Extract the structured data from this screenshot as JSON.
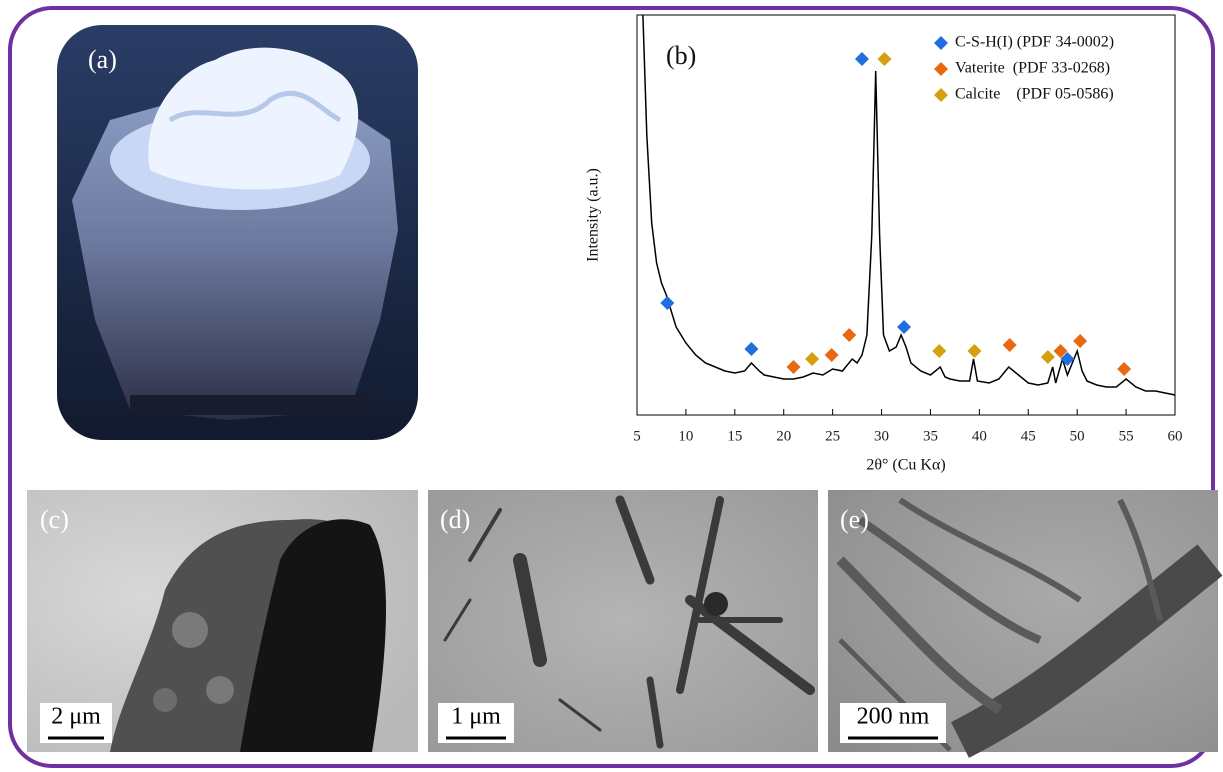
{
  "panels": {
    "a": {
      "label": "(a)"
    },
    "c": {
      "label": "(c)",
      "scale_bar": "2 μm"
    },
    "d": {
      "label": "(d)",
      "scale_bar": "1 μm"
    },
    "e": {
      "label": "(e)",
      "scale_bar": "200 nm"
    }
  },
  "chart_data": {
    "type": "line",
    "panel_label": "(b)",
    "x_label": "2θ° (Cu Kα)",
    "y_label": "Intensity (a.u.)",
    "xlim": [
      5,
      60
    ],
    "ylim": [
      0,
      100
    ],
    "xticks": [
      5,
      10,
      15,
      20,
      25,
      30,
      35,
      40,
      45,
      50,
      55,
      60
    ],
    "series": [
      {
        "type": "line",
        "color": "#000000",
        "x": [
          5.6,
          6,
          6.5,
          7,
          7.5,
          8,
          8.5,
          9,
          10,
          11,
          12,
          13,
          14,
          15,
          16,
          16.7,
          17.5,
          18,
          19,
          20,
          21,
          22,
          23,
          24,
          25,
          26,
          27,
          27.5,
          28,
          28.5,
          29,
          29.4,
          29.8,
          30.2,
          30.8,
          31.5,
          32,
          32.5,
          33,
          34,
          35,
          36,
          36.5,
          37,
          38,
          39,
          39.4,
          39.8,
          41,
          42,
          43,
          43.5,
          44,
          45,
          46,
          47,
          47.5,
          47.8,
          48.5,
          49,
          50,
          50.5,
          51,
          52,
          53,
          54,
          55,
          56,
          57,
          58,
          59,
          60
        ],
        "values": [
          100,
          70,
          48,
          38,
          33,
          30,
          26,
          22,
          18,
          15,
          13,
          12,
          11,
          10.5,
          11,
          13,
          11,
          10,
          9.5,
          9,
          9,
          9.5,
          10.5,
          10,
          11.5,
          11,
          14,
          13,
          15,
          20,
          45,
          86,
          45,
          20,
          16,
          17,
          20,
          17,
          13,
          11,
          10,
          12,
          9.5,
          9,
          8.5,
          8.5,
          14,
          8.5,
          8,
          9,
          12,
          11,
          10,
          8,
          7.5,
          8,
          12,
          8,
          14,
          10,
          16,
          11,
          8.5,
          7.5,
          7,
          7,
          9,
          7,
          6,
          6,
          5.5,
          5
        ]
      },
      {
        "type": "scatter",
        "name": "C-S-H(I) (PDF 34-0002)",
        "color": "#1f6fe0",
        "x": [
          8.1,
          16.7,
          28,
          32.3,
          49
        ],
        "values": [
          28,
          16.5,
          89,
          22,
          14
        ]
      },
      {
        "type": "scatter",
        "name": "Vaterite  (PDF 33-0268)",
        "color": "#e86a10",
        "x": [
          21,
          24.9,
          26.7,
          43.1,
          48.3,
          50.3,
          54.8
        ],
        "values": [
          12,
          15,
          20,
          17.5,
          16,
          18.5,
          11.5
        ]
      },
      {
        "type": "scatter",
        "name": "Calcite    (PDF 05-0586)",
        "color": "#d4a010",
        "x": [
          22.9,
          30.3,
          35.9,
          39.5,
          47
        ],
        "values": [
          14,
          89,
          16,
          16,
          14.5
        ]
      }
    ]
  }
}
